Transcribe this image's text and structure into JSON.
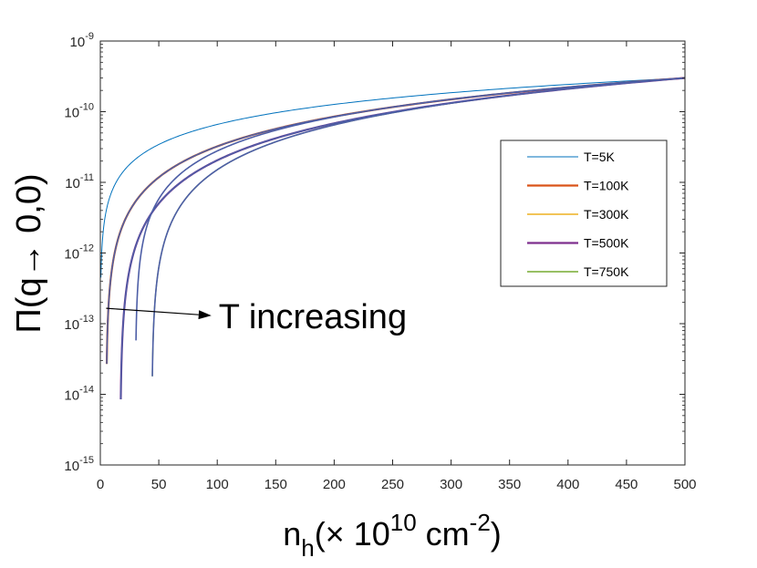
{
  "chart_data": {
    "type": "line",
    "yscale": "log",
    "xlabel": "n_h(× 10^10 cm^-2)",
    "xlabel_parts": {
      "main": "n",
      "sub": "h",
      "pre": "(× 10",
      "sup1": "10",
      "mid": " cm",
      "sup2": "-2",
      "post": ")"
    },
    "ylabel": "Π(q→ 0,0)",
    "xlim": [
      0,
      500
    ],
    "ylim_exponent": [
      -15,
      -9
    ],
    "x_ticks": [
      0,
      50,
      100,
      150,
      200,
      250,
      300,
      350,
      400,
      450,
      500
    ],
    "y_ticks": [
      {
        "base": "10",
        "exp": "-15",
        "value": 1e-15
      },
      {
        "base": "10",
        "exp": "-14",
        "value": 1e-14
      },
      {
        "base": "10",
        "exp": "-13",
        "value": 1e-13
      },
      {
        "base": "10",
        "exp": "-12",
        "value": 1e-12
      },
      {
        "base": "10",
        "exp": "-11",
        "value": 1e-11
      },
      {
        "base": "10",
        "exp": "-10",
        "value": 1e-10
      },
      {
        "base": "10",
        "exp": "-9",
        "value": 1e-09
      }
    ],
    "legend_position": "right",
    "series": [
      {
        "name": "T=5K",
        "color": "#0072BD",
        "onset": 0,
        "endpoint": 4.5e-13
      },
      {
        "name": "T=100K",
        "color": "#D95319",
        "onset": 5,
        "endpoint": 2.7e-14
      },
      {
        "name": "T=300K",
        "color": "#EDB120",
        "onset": 5,
        "endpoint": 2.7e-14
      },
      {
        "name": "T=500K",
        "color": "#7E2F8E",
        "onset": 17,
        "endpoint": 8.5e-15
      },
      {
        "name": "T=750K",
        "color": "#77AC30",
        "onset": 44,
        "endpoint": 1.8e-14
      }
    ],
    "extra_curves": [
      {
        "color": "#4D5EA6",
        "onset": 5,
        "endpoint": 2.7e-14
      },
      {
        "color": "#4D5EA6",
        "onset": 17,
        "endpoint": 8.5e-15
      },
      {
        "color": "#4D5EA6",
        "onset": 30,
        "endpoint": 5.8e-14
      },
      {
        "color": "#4D5EA6",
        "onset": 44,
        "endpoint": 1.8e-14
      }
    ],
    "y_at_500": 3e-10,
    "annotation": {
      "text": "T increasing",
      "arrow_from": [
        5,
        1.65e-13
      ],
      "arrow_to": [
        95,
        1.3e-13
      ]
    }
  }
}
